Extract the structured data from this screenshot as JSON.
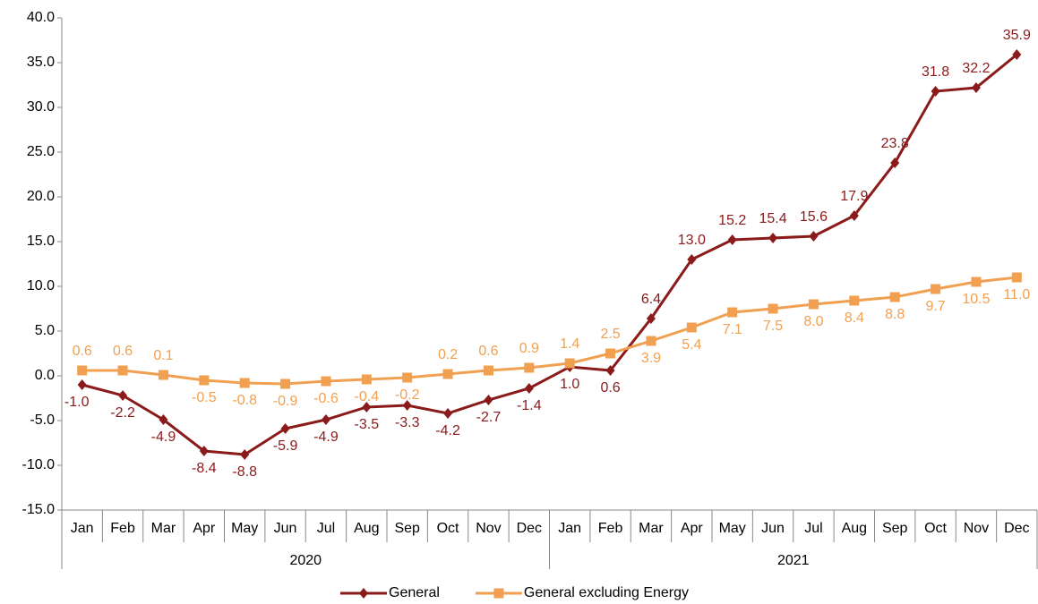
{
  "chart_data": {
    "type": "line",
    "categories": [
      "Jan",
      "Feb",
      "Mar",
      "Apr",
      "May",
      "Jun",
      "Jul",
      "Aug",
      "Sep",
      "Oct",
      "Nov",
      "Dec",
      "Jan",
      "Feb",
      "Mar",
      "Apr",
      "May",
      "Jun",
      "Jul",
      "Aug",
      "Sep",
      "Oct",
      "Nov",
      "Dec"
    ],
    "years": [
      "2020",
      "2021"
    ],
    "ylim": [
      -15,
      40
    ],
    "yticks": [
      {
        "value": -15,
        "label": "-15.0"
      },
      {
        "value": -10,
        "label": "-10.0"
      },
      {
        "value": -5,
        "label": "-5.0"
      },
      {
        "value": 0,
        "label": "0.0"
      },
      {
        "value": 5,
        "label": "5.0"
      },
      {
        "value": 10,
        "label": "10.0"
      },
      {
        "value": 15,
        "label": "15.0"
      },
      {
        "value": 20,
        "label": "20.0"
      },
      {
        "value": 25,
        "label": "25.0"
      },
      {
        "value": 30,
        "label": "30.0"
      },
      {
        "value": 35,
        "label": "35.0"
      },
      {
        "value": 40,
        "label": "40.0"
      }
    ],
    "legend": "bottom",
    "series": [
      {
        "name": "General",
        "color": "#8b1a1a",
        "marker": "diamond",
        "values": [
          -1.0,
          -2.2,
          -4.9,
          -8.4,
          -8.8,
          -5.9,
          -4.9,
          -3.5,
          -3.3,
          -4.2,
          -2.7,
          -1.4,
          1.0,
          0.6,
          6.4,
          13.0,
          15.2,
          15.4,
          15.6,
          17.9,
          23.8,
          31.8,
          32.2,
          35.9
        ],
        "value_labels": [
          "-1.0",
          "-2.2",
          "-4.9",
          "-8.4",
          "-8.8",
          "-5.9",
          "-4.9",
          "-3.5",
          "-3.3",
          "-4.2",
          "-2.7",
          "-1.4",
          "1.0",
          "0.6",
          "6.4",
          "13.0",
          "15.2",
          "15.4",
          "15.6",
          "17.9",
          "23.8",
          "31.8",
          "32.2",
          "35.9"
        ]
      },
      {
        "name": "General excluding Energy",
        "color": "#f0a050",
        "marker": "square",
        "values": [
          0.6,
          0.6,
          0.1,
          -0.5,
          -0.8,
          -0.9,
          -0.6,
          -0.4,
          -0.2,
          0.2,
          0.6,
          0.9,
          1.4,
          2.5,
          3.9,
          5.4,
          7.1,
          7.5,
          8.0,
          8.4,
          8.8,
          9.7,
          10.5,
          11.0
        ],
        "value_labels": [
          "0.6",
          "0.6",
          "0.1",
          "-0.5",
          "-0.8",
          "-0.9",
          "-0.6",
          "-0.4",
          "-0.2",
          "0.2",
          "0.6",
          "0.9",
          "1.4",
          "2.5",
          "3.9",
          "5.4",
          "7.1",
          "7.5",
          "8.0",
          "8.4",
          "8.8",
          "9.7",
          "10.5",
          "11.0"
        ]
      }
    ]
  }
}
